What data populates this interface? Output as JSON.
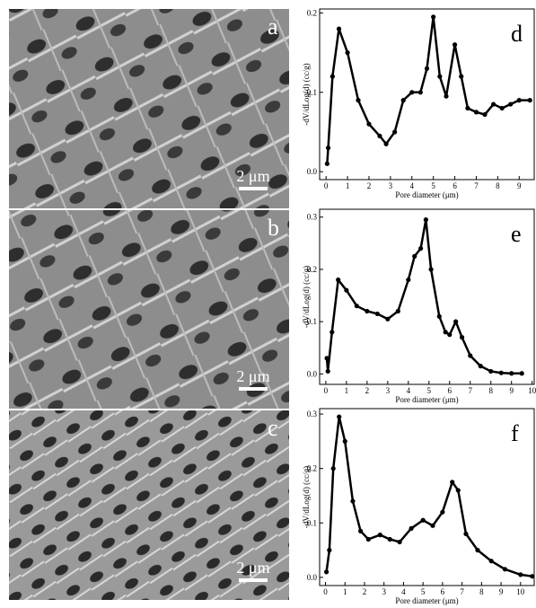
{
  "images": [
    {
      "label": "a",
      "scale_bar": "2 μm"
    },
    {
      "label": "b",
      "scale_bar": "2 μm"
    },
    {
      "label": "c",
      "scale_bar": "2 μm"
    }
  ],
  "chart_data": [
    {
      "type": "line",
      "panel_label": "d",
      "xlabel": "Pore diameter (μm)",
      "ylabel": "-dV/dLog(d) (cc/g)",
      "color": "#000000",
      "x": [
        0.05,
        0.1,
        0.3,
        0.6,
        1,
        1.5,
        2,
        2.5,
        2.8,
        3.2,
        3.6,
        4,
        4.4,
        4.7,
        5,
        5.3,
        5.6,
        6,
        6.3,
        6.6,
        7,
        7.4,
        7.8,
        8.2,
        8.6,
        9,
        9.5
      ],
      "values": [
        0.01,
        0.03,
        0.12,
        0.18,
        0.15,
        0.09,
        0.06,
        0.045,
        0.035,
        0.05,
        0.09,
        0.1,
        0.1,
        0.13,
        0.195,
        0.12,
        0.095,
        0.16,
        0.12,
        0.08,
        0.075,
        0.072,
        0.085,
        0.08,
        0.085,
        0.09,
        0.09
      ],
      "xlim": [
        -0.3,
        9.7
      ],
      "ylim": [
        -0.01,
        0.205
      ],
      "xticks": [
        0,
        1,
        2,
        3,
        4,
        5,
        6,
        7,
        8,
        9
      ],
      "yticks": [
        {
          "value": 0,
          "label": "0.0"
        },
        {
          "value": 0.1,
          "label": "0.1"
        },
        {
          "value": 0.2,
          "label": "0.2"
        }
      ]
    },
    {
      "type": "line",
      "panel_label": "e",
      "xlabel": "Pore diameter (μm)",
      "ylabel": "-dV/dLog(d) (cc/g)",
      "color": "#000000",
      "x": [
        0.05,
        0.1,
        0.3,
        0.6,
        1,
        1.5,
        2,
        2.5,
        3,
        3.5,
        4,
        4.3,
        4.6,
        4.85,
        5.1,
        5.5,
        5.8,
        6,
        6.3,
        6.6,
        7,
        7.5,
        8,
        8.5,
        9,
        9.5
      ],
      "values": [
        0.03,
        0.005,
        0.08,
        0.18,
        0.16,
        0.13,
        0.12,
        0.115,
        0.105,
        0.12,
        0.18,
        0.225,
        0.24,
        0.295,
        0.2,
        0.11,
        0.08,
        0.075,
        0.1,
        0.07,
        0.035,
        0.015,
        0.005,
        0.002,
        0.001,
        0.001
      ],
      "xlim": [
        -0.3,
        10.1
      ],
      "ylim": [
        -0.02,
        0.315
      ],
      "xticks": [
        0,
        1,
        2,
        3,
        4,
        5,
        6,
        7,
        8,
        9,
        10
      ],
      "yticks": [
        {
          "value": 0,
          "label": "0.0"
        },
        {
          "value": 0.1,
          "label": "0.1"
        },
        {
          "value": 0.2,
          "label": "0.2"
        },
        {
          "value": 0.3,
          "label": "0.3"
        }
      ]
    },
    {
      "type": "line",
      "panel_label": "f",
      "xlabel": "Pore diameter (μm)",
      "ylabel": "-dV/dLog(d) (cc/g)",
      "color": "#000000",
      "x": [
        0.05,
        0.2,
        0.4,
        0.7,
        1,
        1.4,
        1.8,
        2.2,
        2.8,
        3.3,
        3.8,
        4.4,
        5,
        5.5,
        6,
        6.5,
        6.8,
        7.2,
        7.8,
        8.5,
        9.2,
        10,
        10.6
      ],
      "values": [
        0.01,
        0.05,
        0.2,
        0.295,
        0.25,
        0.14,
        0.085,
        0.07,
        0.078,
        0.07,
        0.065,
        0.09,
        0.105,
        0.095,
        0.12,
        0.175,
        0.16,
        0.08,
        0.05,
        0.03,
        0.015,
        0.005,
        0.002
      ],
      "xlim": [
        -0.3,
        10.7
      ],
      "ylim": [
        -0.015,
        0.31
      ],
      "xticks": [
        0,
        1,
        2,
        3,
        4,
        5,
        6,
        7,
        8,
        9,
        10
      ],
      "yticks": [
        {
          "value": 0,
          "label": "0.0"
        },
        {
          "value": 0.1,
          "label": "0.1"
        },
        {
          "value": 0.2,
          "label": "0.2"
        },
        {
          "value": 0.3,
          "label": "0.3"
        }
      ]
    }
  ]
}
